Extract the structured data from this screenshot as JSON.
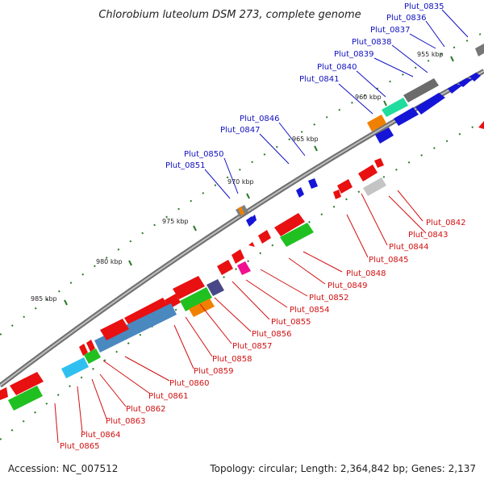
{
  "title": "Chlorobium luteolum DSM 273, complete genome",
  "footer": {
    "accession": "Accession: NC_007512",
    "summary": "Topology: circular; Length: 2,364,842 bp; Genes: 2,137"
  },
  "colors": {
    "forward_label": "#1010c0",
    "reverse_label": "#d01010",
    "backbone": "#8a8a8a",
    "ticks": "#2a7a2a"
  },
  "tick_labels": [
    "955 kbp",
    "960 kbp",
    "965 kbp",
    "970 kbp",
    "975 kbp",
    "980 kbp",
    "985 kbp"
  ],
  "forward_genes": [
    "Plut_0835",
    "Plut_0836",
    "Plut_0837",
    "Plut_0838",
    "Plut_0839",
    "Plut_0840",
    "Plut_0841",
    "Plut_0846",
    "Plut_0847",
    "Plut_0850",
    "Plut_0851"
  ],
  "reverse_genes": [
    "Plut_0842",
    "Plut_0843",
    "Plut_0844",
    "Plut_0845",
    "Plut_0848",
    "Plut_0849",
    "Plut_0852",
    "Plut_0854",
    "Plut_0855",
    "Plut_0856",
    "Plut_0857",
    "Plut_0858",
    "Plut_0859",
    "Plut_0860",
    "Plut_0861",
    "Plut_0862",
    "Plut_0863",
    "Plut_0864",
    "Plut_0865"
  ]
}
